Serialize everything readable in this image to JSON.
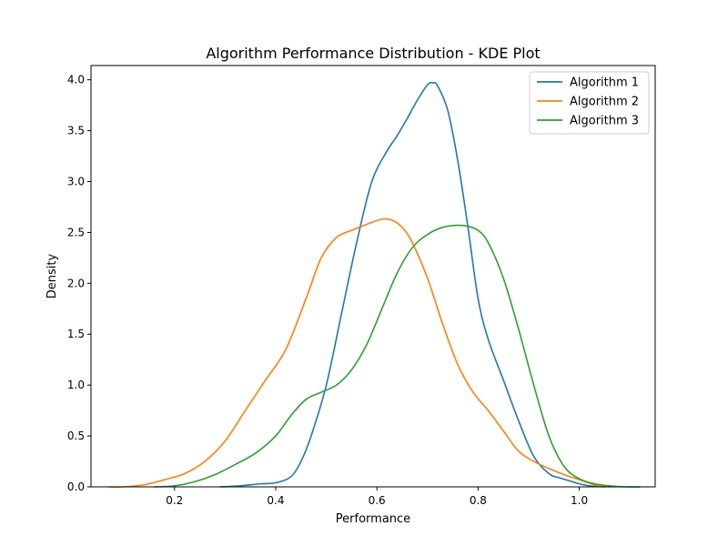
{
  "chart_data": {
    "type": "line",
    "title": "Algorithm Performance Distribution - KDE Plot",
    "xlabel": "Performance",
    "ylabel": "Density",
    "xlim": [
      0.035,
      1.15
    ],
    "ylim": [
      0,
      4.14
    ],
    "xticks": [
      0.2,
      0.4,
      0.6,
      0.8,
      1.0
    ],
    "xtick_labels": [
      "0.2",
      "0.4",
      "0.6",
      "0.8",
      "1.0"
    ],
    "yticks": [
      0.0,
      0.5,
      1.0,
      1.5,
      2.0,
      2.5,
      3.0,
      3.5,
      4.0
    ],
    "ytick_labels": [
      "0.0",
      "0.5",
      "1.0",
      "1.5",
      "2.0",
      "2.5",
      "3.0",
      "3.5",
      "4.0"
    ],
    "grid": false,
    "legend_position": "top-right",
    "series": [
      {
        "name": "Algorithm 1",
        "color": "#1f77b4",
        "x": [
          0.29,
          0.33,
          0.37,
          0.4,
          0.43,
          0.45,
          0.47,
          0.5,
          0.53,
          0.56,
          0.59,
          0.62,
          0.64,
          0.66,
          0.68,
          0.7,
          0.71,
          0.72,
          0.74,
          0.76,
          0.78,
          0.8,
          0.82,
          0.85,
          0.88,
          0.91,
          0.94,
          0.96,
          0.98,
          1.0,
          1.02,
          1.05
        ],
        "values": [
          0.0,
          0.01,
          0.03,
          0.04,
          0.1,
          0.25,
          0.5,
          1.0,
          1.7,
          2.4,
          3.0,
          3.3,
          3.45,
          3.62,
          3.8,
          3.95,
          3.97,
          3.94,
          3.7,
          3.2,
          2.55,
          1.85,
          1.45,
          1.05,
          0.65,
          0.3,
          0.13,
          0.09,
          0.06,
          0.03,
          0.01,
          0.0
        ]
      },
      {
        "name": "Algorithm 2",
        "color": "#ff7f0e",
        "x": [
          0.07,
          0.1,
          0.14,
          0.18,
          0.22,
          0.26,
          0.3,
          0.34,
          0.38,
          0.42,
          0.46,
          0.49,
          0.52,
          0.55,
          0.58,
          0.61,
          0.63,
          0.65,
          0.67,
          0.7,
          0.73,
          0.76,
          0.79,
          0.82,
          0.85,
          0.88,
          0.91,
          0.94,
          0.97,
          1.0,
          1.03,
          1.06
        ],
        "values": [
          0.0,
          0.0,
          0.02,
          0.07,
          0.13,
          0.25,
          0.45,
          0.75,
          1.05,
          1.35,
          1.85,
          2.25,
          2.45,
          2.52,
          2.58,
          2.63,
          2.62,
          2.55,
          2.4,
          2.05,
          1.6,
          1.2,
          0.93,
          0.75,
          0.55,
          0.35,
          0.25,
          0.18,
          0.12,
          0.07,
          0.02,
          0.0
        ]
      },
      {
        "name": "Algorithm 3",
        "color": "#2ca02c",
        "x": [
          0.16,
          0.2,
          0.24,
          0.28,
          0.32,
          0.36,
          0.4,
          0.43,
          0.46,
          0.49,
          0.52,
          0.55,
          0.58,
          0.61,
          0.64,
          0.67,
          0.7,
          0.73,
          0.76,
          0.78,
          0.8,
          0.82,
          0.85,
          0.88,
          0.91,
          0.94,
          0.97,
          1.0,
          1.03,
          1.06,
          1.09,
          1.12
        ],
        "values": [
          0.0,
          0.01,
          0.05,
          0.12,
          0.22,
          0.33,
          0.5,
          0.7,
          0.86,
          0.93,
          1.0,
          1.15,
          1.4,
          1.75,
          2.1,
          2.35,
          2.48,
          2.55,
          2.57,
          2.56,
          2.52,
          2.4,
          2.05,
          1.55,
          1.0,
          0.5,
          0.2,
          0.08,
          0.03,
          0.01,
          0.0,
          0.0
        ]
      }
    ]
  }
}
